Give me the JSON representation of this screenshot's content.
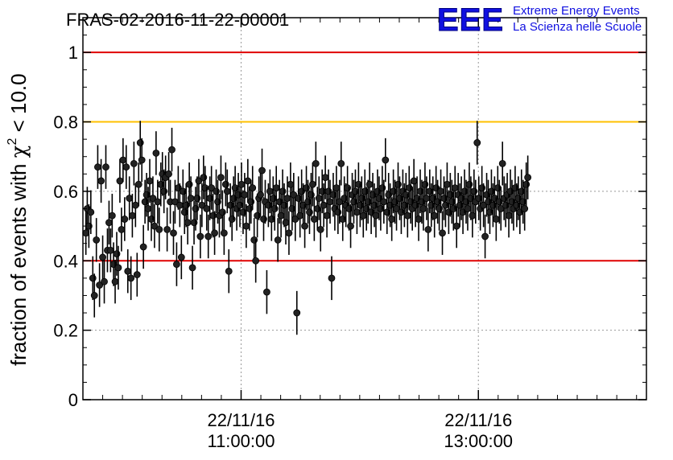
{
  "title": "FRAS-02-2016-11-22-00001",
  "logo": {
    "letters": "EEE",
    "line1": "Extreme Energy Events",
    "line2": "La Scienza nelle Scuole",
    "color": "#1010e0"
  },
  "chart_data": {
    "type": "scatter",
    "title": "FRAS-02-2016-11-22-00001",
    "ylabel_prefix": "fraction of events with ",
    "ylabel_symbol": "χ",
    "ylabel_exp": "2",
    "ylabel_suffix": " < 10.0",
    "xlabel": "",
    "ylim": [
      0,
      1.1
    ],
    "xlim_minutes": [
      -80,
      205
    ],
    "y_ticks": [
      "0",
      "0.2",
      "0.4",
      "0.6",
      "0.8",
      "1"
    ],
    "x_ticks": [
      {
        "date": "22/11/16",
        "time": "11:00:00",
        "minute": 0
      },
      {
        "date": "22/11/16",
        "time": "13:00:00",
        "minute": 120
      }
    ],
    "grid": "dotted",
    "reference_lines": [
      {
        "y": 1.0,
        "color": "#e00000"
      },
      {
        "y": 0.8,
        "color": "#ffc000"
      },
      {
        "y": 0.4,
        "color": "#e00000"
      }
    ],
    "marker_color": "#000000",
    "error_bar": 0.063,
    "points_note_minutes_from_first_tick": true,
    "points": [
      [
        -78.5,
        0.48
      ],
      [
        -77.8,
        0.55
      ],
      [
        -77,
        0.5
      ],
      [
        -76,
        0.54
      ],
      [
        -75,
        0.35
      ],
      [
        -74.2,
        0.3
      ],
      [
        -73.2,
        0.46
      ],
      [
        -72.5,
        0.67
      ],
      [
        -71.6,
        0.33
      ],
      [
        -70.8,
        0.63
      ],
      [
        -70,
        0.41
      ],
      [
        -69.2,
        0.34
      ],
      [
        -68.4,
        0.67
      ],
      [
        -67.6,
        0.43
      ],
      [
        -66.8,
        0.51
      ],
      [
        -66,
        0.43
      ],
      [
        -65.2,
        0.53
      ],
      [
        -64.5,
        0.39
      ],
      [
        -63.7,
        0.34
      ],
      [
        -62.9,
        0.42
      ],
      [
        -62.1,
        0.38
      ],
      [
        -61.3,
        0.63
      ],
      [
        -60.5,
        0.49
      ],
      [
        -59.7,
        0.69
      ],
      [
        -58.9,
        0.52
      ],
      [
        -58.1,
        0.67
      ],
      [
        -57.3,
        0.37
      ],
      [
        -56.5,
        0.58
      ],
      [
        -55.7,
        0.35
      ],
      [
        -55,
        0.53
      ],
      [
        -54.2,
        0.68
      ],
      [
        -53.4,
        0.56
      ],
      [
        -52.6,
        0.36
      ],
      [
        -51.8,
        0.62
      ],
      [
        -51,
        0.74
      ],
      [
        -50.2,
        0.69
      ],
      [
        -49.4,
        0.44
      ],
      [
        -48.6,
        0.57
      ],
      [
        -47.8,
        0.59
      ],
      [
        -47,
        0.55
      ],
      [
        -46.2,
        0.63
      ],
      [
        -45.4,
        0.52
      ],
      [
        -44.6,
        0.58
      ],
      [
        -43.8,
        0.5
      ],
      [
        -43,
        0.71
      ],
      [
        -42.2,
        0.57
      ],
      [
        -41.4,
        0.49
      ],
      [
        -40.6,
        0.62
      ],
      [
        -39.8,
        0.65
      ],
      [
        -39,
        0.6
      ],
      [
        -38.2,
        0.64
      ],
      [
        -37.4,
        0.49
      ],
      [
        -36.6,
        0.65
      ],
      [
        -35.8,
        0.57
      ],
      [
        -35,
        0.72
      ],
      [
        -34.2,
        0.48
      ],
      [
        -33.4,
        0.57
      ],
      [
        -32.6,
        0.39
      ],
      [
        -31.8,
        0.61
      ],
      [
        -31,
        0.56
      ],
      [
        -30.2,
        0.41
      ],
      [
        -29.4,
        0.6
      ],
      [
        -28.6,
        0.54
      ],
      [
        -27.8,
        0.56
      ],
      [
        -27,
        0.51
      ],
      [
        -26.2,
        0.62
      ],
      [
        -25.4,
        0.58
      ],
      [
        -24.6,
        0.38
      ],
      [
        -23.8,
        0.51
      ],
      [
        -23,
        0.55
      ],
      [
        -22.2,
        0.58
      ],
      [
        -21.4,
        0.63
      ],
      [
        -20.6,
        0.47
      ],
      [
        -19.8,
        0.56
      ],
      [
        -19,
        0.64
      ],
      [
        -18.2,
        0.61
      ],
      [
        -17.4,
        0.55
      ],
      [
        -16.6,
        0.47
      ],
      [
        -15.8,
        0.58
      ],
      [
        -15,
        0.61
      ],
      [
        -14.2,
        0.53
      ],
      [
        -13.4,
        0.48
      ],
      [
        -12.6,
        0.6
      ],
      [
        -11.8,
        0.57
      ],
      [
        -11,
        0.53
      ],
      [
        -10.2,
        0.64
      ],
      [
        -9.4,
        0.54
      ],
      [
        -8.6,
        0.48
      ],
      [
        -7.8,
        0.62
      ],
      [
        -7,
        0.6
      ],
      [
        -6.2,
        0.37
      ],
      [
        -5.4,
        0.56
      ],
      [
        -4.6,
        0.52
      ],
      [
        -3.8,
        0.58
      ],
      [
        -3,
        0.61
      ],
      [
        -2.2,
        0.55
      ],
      [
        -1.4,
        0.59
      ],
      [
        -0.6,
        0.56
      ],
      [
        0.2,
        0.62
      ],
      [
        1,
        0.54
      ],
      [
        1.8,
        0.59
      ],
      [
        2.6,
        0.5
      ],
      [
        3.4,
        0.63
      ],
      [
        4.2,
        0.55
      ],
      [
        5,
        0.57
      ],
      [
        5.8,
        0.61
      ],
      [
        6.6,
        0.46
      ],
      [
        7.4,
        0.4
      ],
      [
        8.2,
        0.53
      ],
      [
        9,
        0.58
      ],
      [
        9.8,
        0.59
      ],
      [
        10.6,
        0.66
      ],
      [
        11.4,
        0.52
      ],
      [
        12.2,
        0.57
      ],
      [
        13,
        0.31
      ],
      [
        13.8,
        0.56
      ],
      [
        14.6,
        0.6
      ],
      [
        15.4,
        0.52
      ],
      [
        16.2,
        0.58
      ],
      [
        17,
        0.55
      ],
      [
        17.8,
        0.61
      ],
      [
        18.6,
        0.46
      ],
      [
        19.4,
        0.57
      ],
      [
        20.2,
        0.53
      ],
      [
        21,
        0.6
      ],
      [
        21.8,
        0.56
      ],
      [
        22.6,
        0.51
      ],
      [
        23.4,
        0.58
      ],
      [
        24.2,
        0.48
      ],
      [
        25,
        0.62
      ],
      [
        25.8,
        0.55
      ],
      [
        26.6,
        0.59
      ],
      [
        27.4,
        0.52
      ],
      [
        28.2,
        0.25
      ],
      [
        29,
        0.58
      ],
      [
        29.8,
        0.53
      ],
      [
        30.6,
        0.6
      ],
      [
        31.4,
        0.56
      ],
      [
        32.2,
        0.5
      ],
      [
        33,
        0.61
      ],
      [
        33.8,
        0.57
      ],
      [
        34.6,
        0.54
      ],
      [
        35.4,
        0.59
      ],
      [
        36.2,
        0.62
      ],
      [
        37,
        0.52
      ],
      [
        37.8,
        0.68
      ],
      [
        38.6,
        0.55
      ],
      [
        39.4,
        0.58
      ],
      [
        40.2,
        0.49
      ],
      [
        41,
        0.6
      ],
      [
        41.8,
        0.56
      ],
      [
        42.6,
        0.64
      ],
      [
        43.4,
        0.53
      ],
      [
        44.2,
        0.6
      ],
      [
        45,
        0.57
      ],
      [
        45.8,
        0.35
      ],
      [
        46.6,
        0.59
      ],
      [
        47.4,
        0.55
      ],
      [
        48.2,
        0.61
      ],
      [
        49,
        0.54
      ],
      [
        49.8,
        0.57
      ],
      [
        50.6,
        0.68
      ],
      [
        51.4,
        0.52
      ],
      [
        52.2,
        0.58
      ],
      [
        53,
        0.56
      ],
      [
        53.8,
        0.61
      ],
      [
        54.6,
        0.55
      ],
      [
        55.4,
        0.5
      ],
      [
        56.2,
        0.59
      ],
      [
        57,
        0.57
      ],
      [
        57.8,
        0.6
      ],
      [
        58.6,
        0.54
      ],
      [
        59.4,
        0.62
      ],
      [
        60.2,
        0.56
      ],
      [
        61,
        0.58
      ],
      [
        61.8,
        0.53
      ],
      [
        62.6,
        0.6
      ],
      [
        63.4,
        0.55
      ],
      [
        64.2,
        0.57
      ],
      [
        65,
        0.62
      ],
      [
        65.8,
        0.54
      ],
      [
        66.6,
        0.59
      ],
      [
        67.4,
        0.56
      ],
      [
        68.2,
        0.53
      ],
      [
        69,
        0.6
      ],
      [
        69.8,
        0.58
      ],
      [
        70.6,
        0.55
      ],
      [
        71.4,
        0.61
      ],
      [
        72.2,
        0.57
      ],
      [
        73,
        0.69
      ],
      [
        73.8,
        0.54
      ],
      [
        74.6,
        0.59
      ],
      [
        75.4,
        0.56
      ],
      [
        76.2,
        0.52
      ],
      [
        77,
        0.6
      ],
      [
        77.8,
        0.57
      ],
      [
        78.6,
        0.55
      ],
      [
        79.4,
        0.62
      ],
      [
        80.2,
        0.58
      ],
      [
        81,
        0.54
      ],
      [
        81.8,
        0.6
      ],
      [
        82.6,
        0.56
      ],
      [
        83.4,
        0.59
      ],
      [
        84.2,
        0.53
      ],
      [
        85,
        0.61
      ],
      [
        85.8,
        0.57
      ],
      [
        86.6,
        0.55
      ],
      [
        87.4,
        0.63
      ],
      [
        88.2,
        0.56
      ],
      [
        89,
        0.58
      ],
      [
        89.8,
        0.52
      ],
      [
        90.6,
        0.6
      ],
      [
        91.4,
        0.57
      ],
      [
        92.2,
        0.55
      ],
      [
        93,
        0.62
      ],
      [
        93.8,
        0.58
      ],
      [
        94.6,
        0.49
      ],
      [
        95.4,
        0.6
      ],
      [
        96.2,
        0.56
      ],
      [
        97,
        0.58
      ],
      [
        97.8,
        0.53
      ],
      [
        98.6,
        0.61
      ],
      [
        99.4,
        0.57
      ],
      [
        100.2,
        0.55
      ],
      [
        101,
        0.6
      ],
      [
        101.8,
        0.48
      ],
      [
        102.6,
        0.58
      ],
      [
        103.4,
        0.56
      ],
      [
        104.2,
        0.62
      ],
      [
        105,
        0.54
      ],
      [
        105.8,
        0.59
      ],
      [
        106.6,
        0.57
      ],
      [
        107.4,
        0.55
      ],
      [
        108.2,
        0.61
      ],
      [
        109,
        0.5
      ],
      [
        109.8,
        0.59
      ],
      [
        110.6,
        0.56
      ],
      [
        111.4,
        0.58
      ],
      [
        112.2,
        0.54
      ],
      [
        113,
        0.6
      ],
      [
        113.8,
        0.57
      ],
      [
        114.6,
        0.55
      ],
      [
        115.4,
        0.62
      ],
      [
        116.2,
        0.58
      ],
      [
        117,
        0.53
      ],
      [
        117.8,
        0.6
      ],
      [
        118.6,
        0.57
      ],
      [
        119.4,
        0.74
      ],
      [
        120.2,
        0.58
      ],
      [
        121,
        0.55
      ],
      [
        121.8,
        0.61
      ],
      [
        122.6,
        0.56
      ],
      [
        123.4,
        0.47
      ],
      [
        124.2,
        0.59
      ],
      [
        125,
        0.57
      ],
      [
        125.8,
        0.54
      ],
      [
        126.6,
        0.6
      ],
      [
        127.4,
        0.56
      ],
      [
        128.2,
        0.58
      ],
      [
        129,
        0.52
      ],
      [
        129.8,
        0.61
      ],
      [
        130.6,
        0.57
      ],
      [
        131.4,
        0.55
      ],
      [
        132.2,
        0.68
      ],
      [
        133,
        0.58
      ],
      [
        133.8,
        0.56
      ],
      [
        134.6,
        0.59
      ],
      [
        135.4,
        0.53
      ],
      [
        136.2,
        0.6
      ],
      [
        137,
        0.57
      ],
      [
        137.8,
        0.55
      ],
      [
        138.6,
        0.61
      ],
      [
        139.4,
        0.56
      ],
      [
        140.2,
        0.58
      ],
      [
        141,
        0.54
      ],
      [
        141.8,
        0.6
      ],
      [
        142.6,
        0.57
      ],
      [
        143.4,
        0.55
      ],
      [
        144.2,
        0.62
      ],
      [
        145,
        0.64
      ]
    ]
  }
}
